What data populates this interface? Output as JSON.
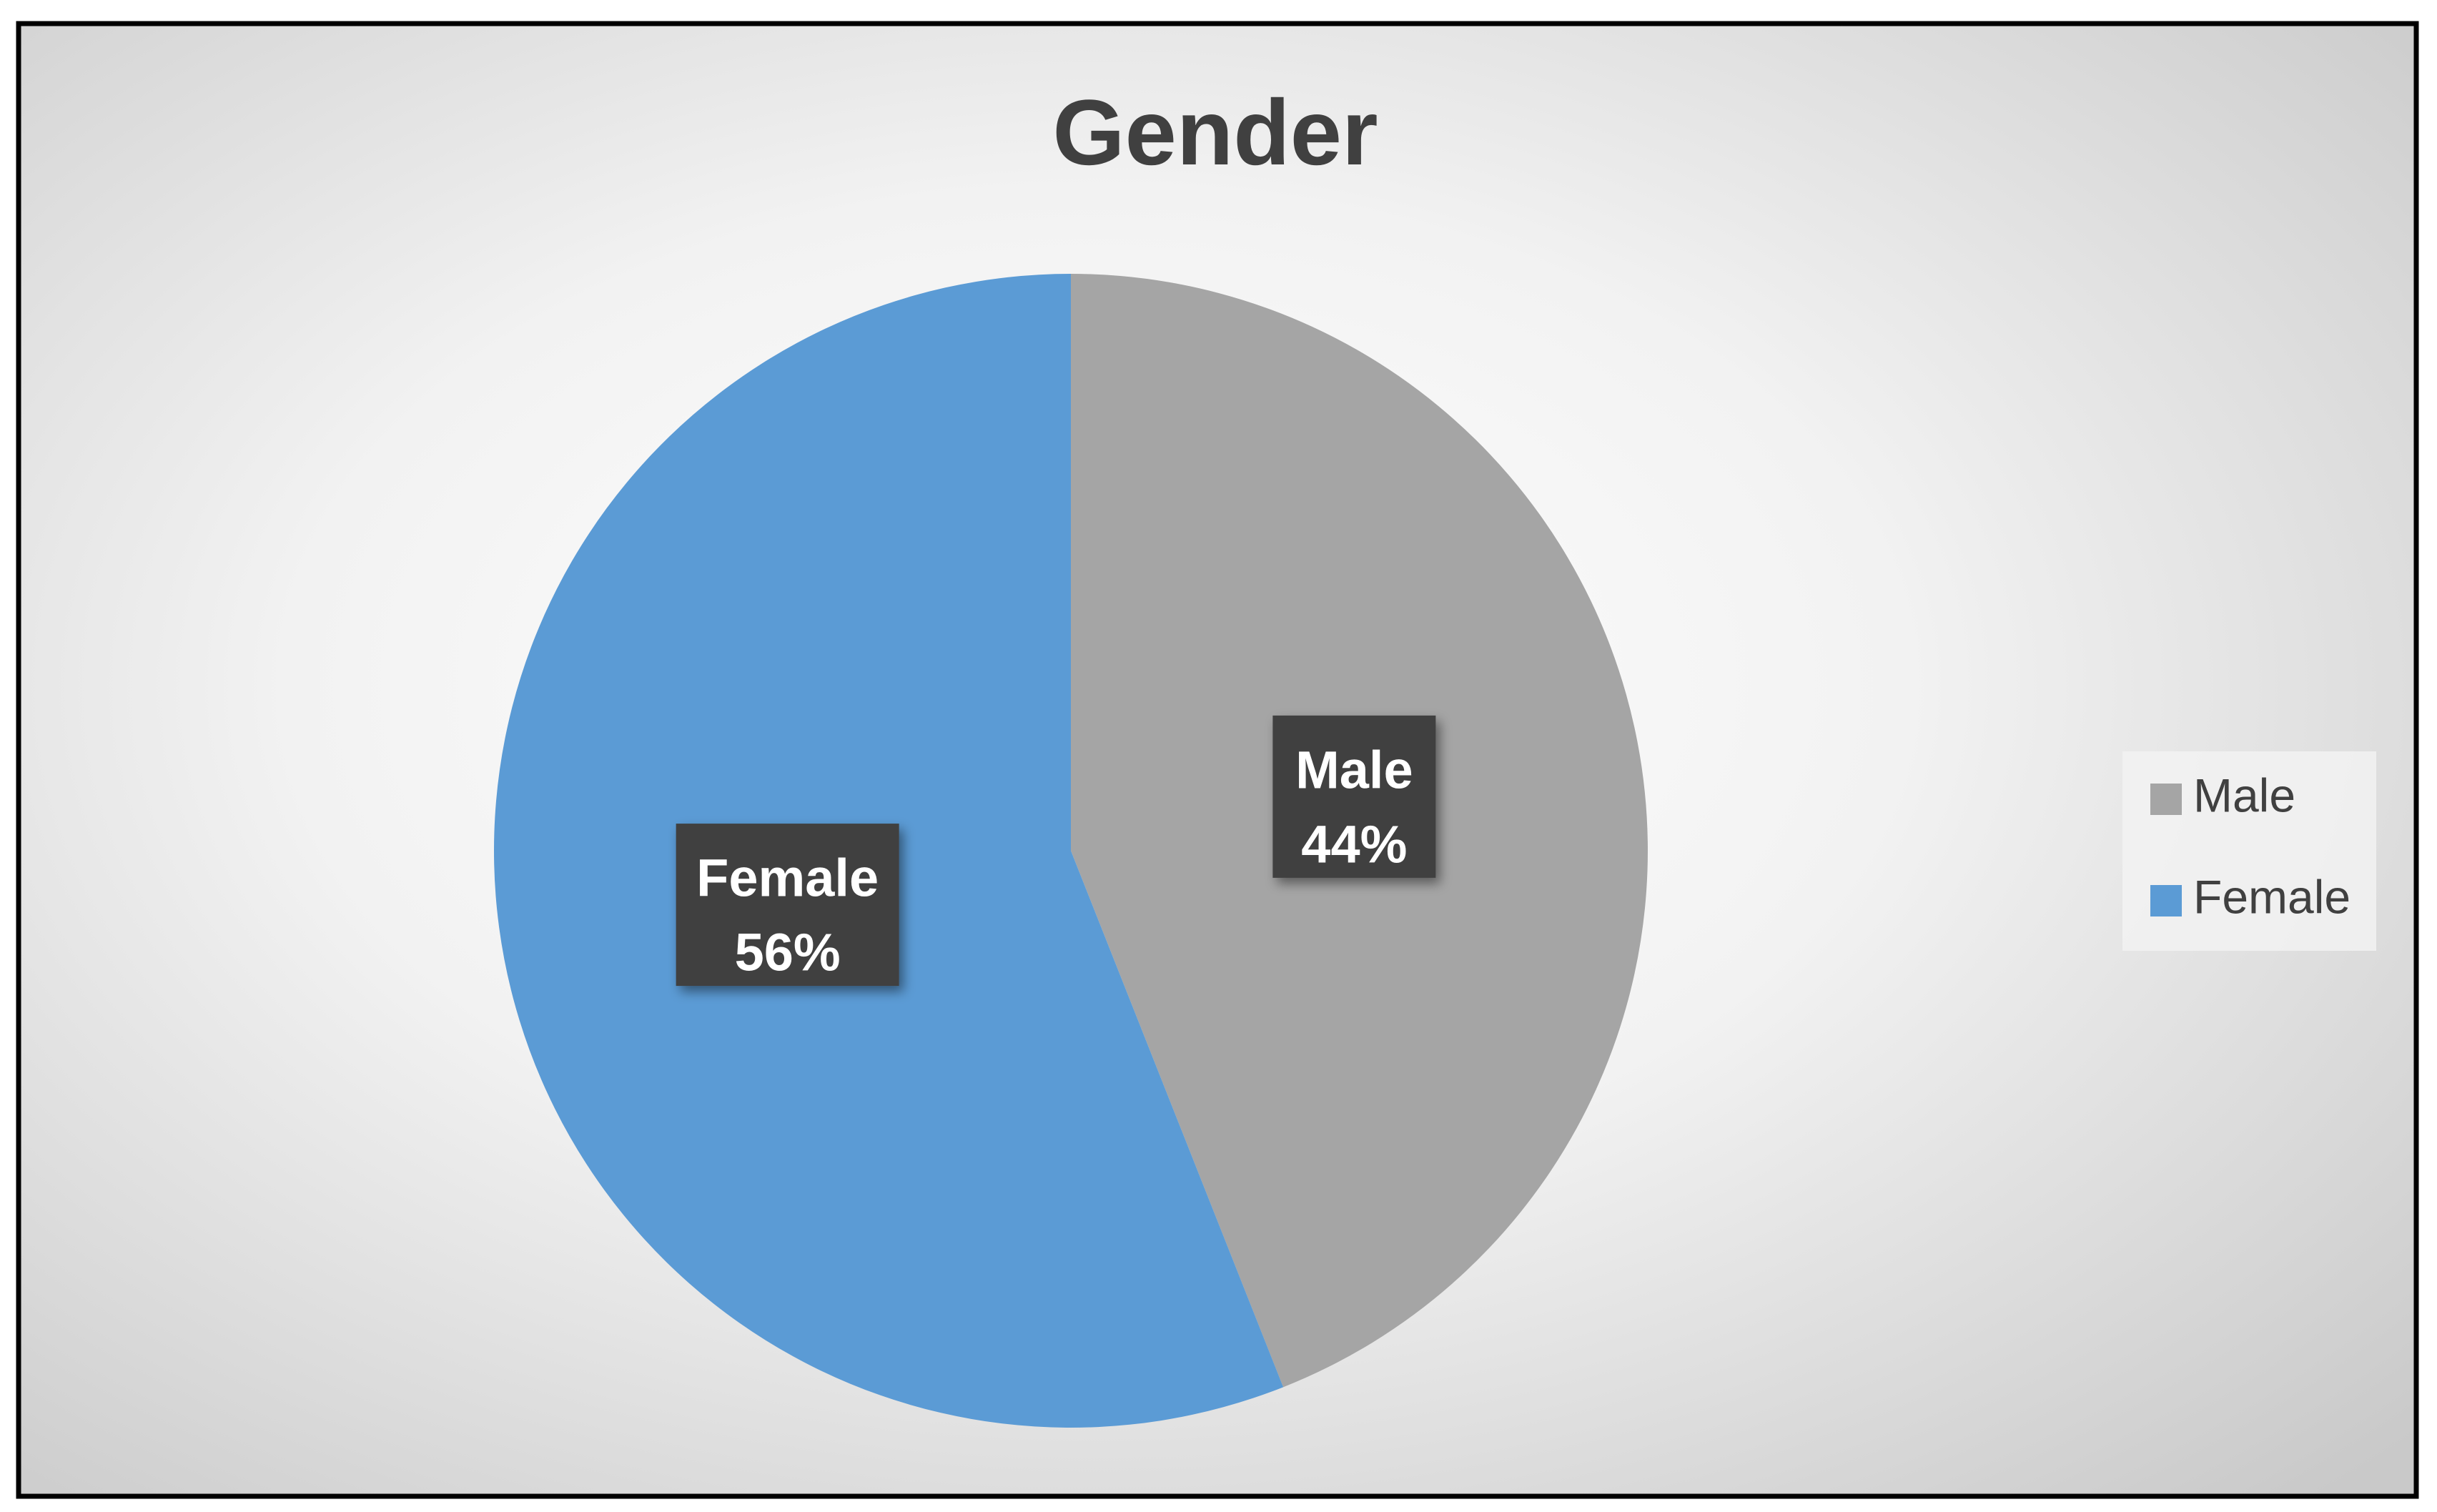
{
  "chart_data": {
    "type": "pie",
    "title": "Gender",
    "categories": [
      "Male",
      "Female"
    ],
    "values": [
      44,
      56
    ],
    "value_labels": [
      "44%",
      "56%"
    ],
    "colors": [
      "#a5a5a5",
      "#5b9bd5"
    ],
    "legend": "right"
  }
}
